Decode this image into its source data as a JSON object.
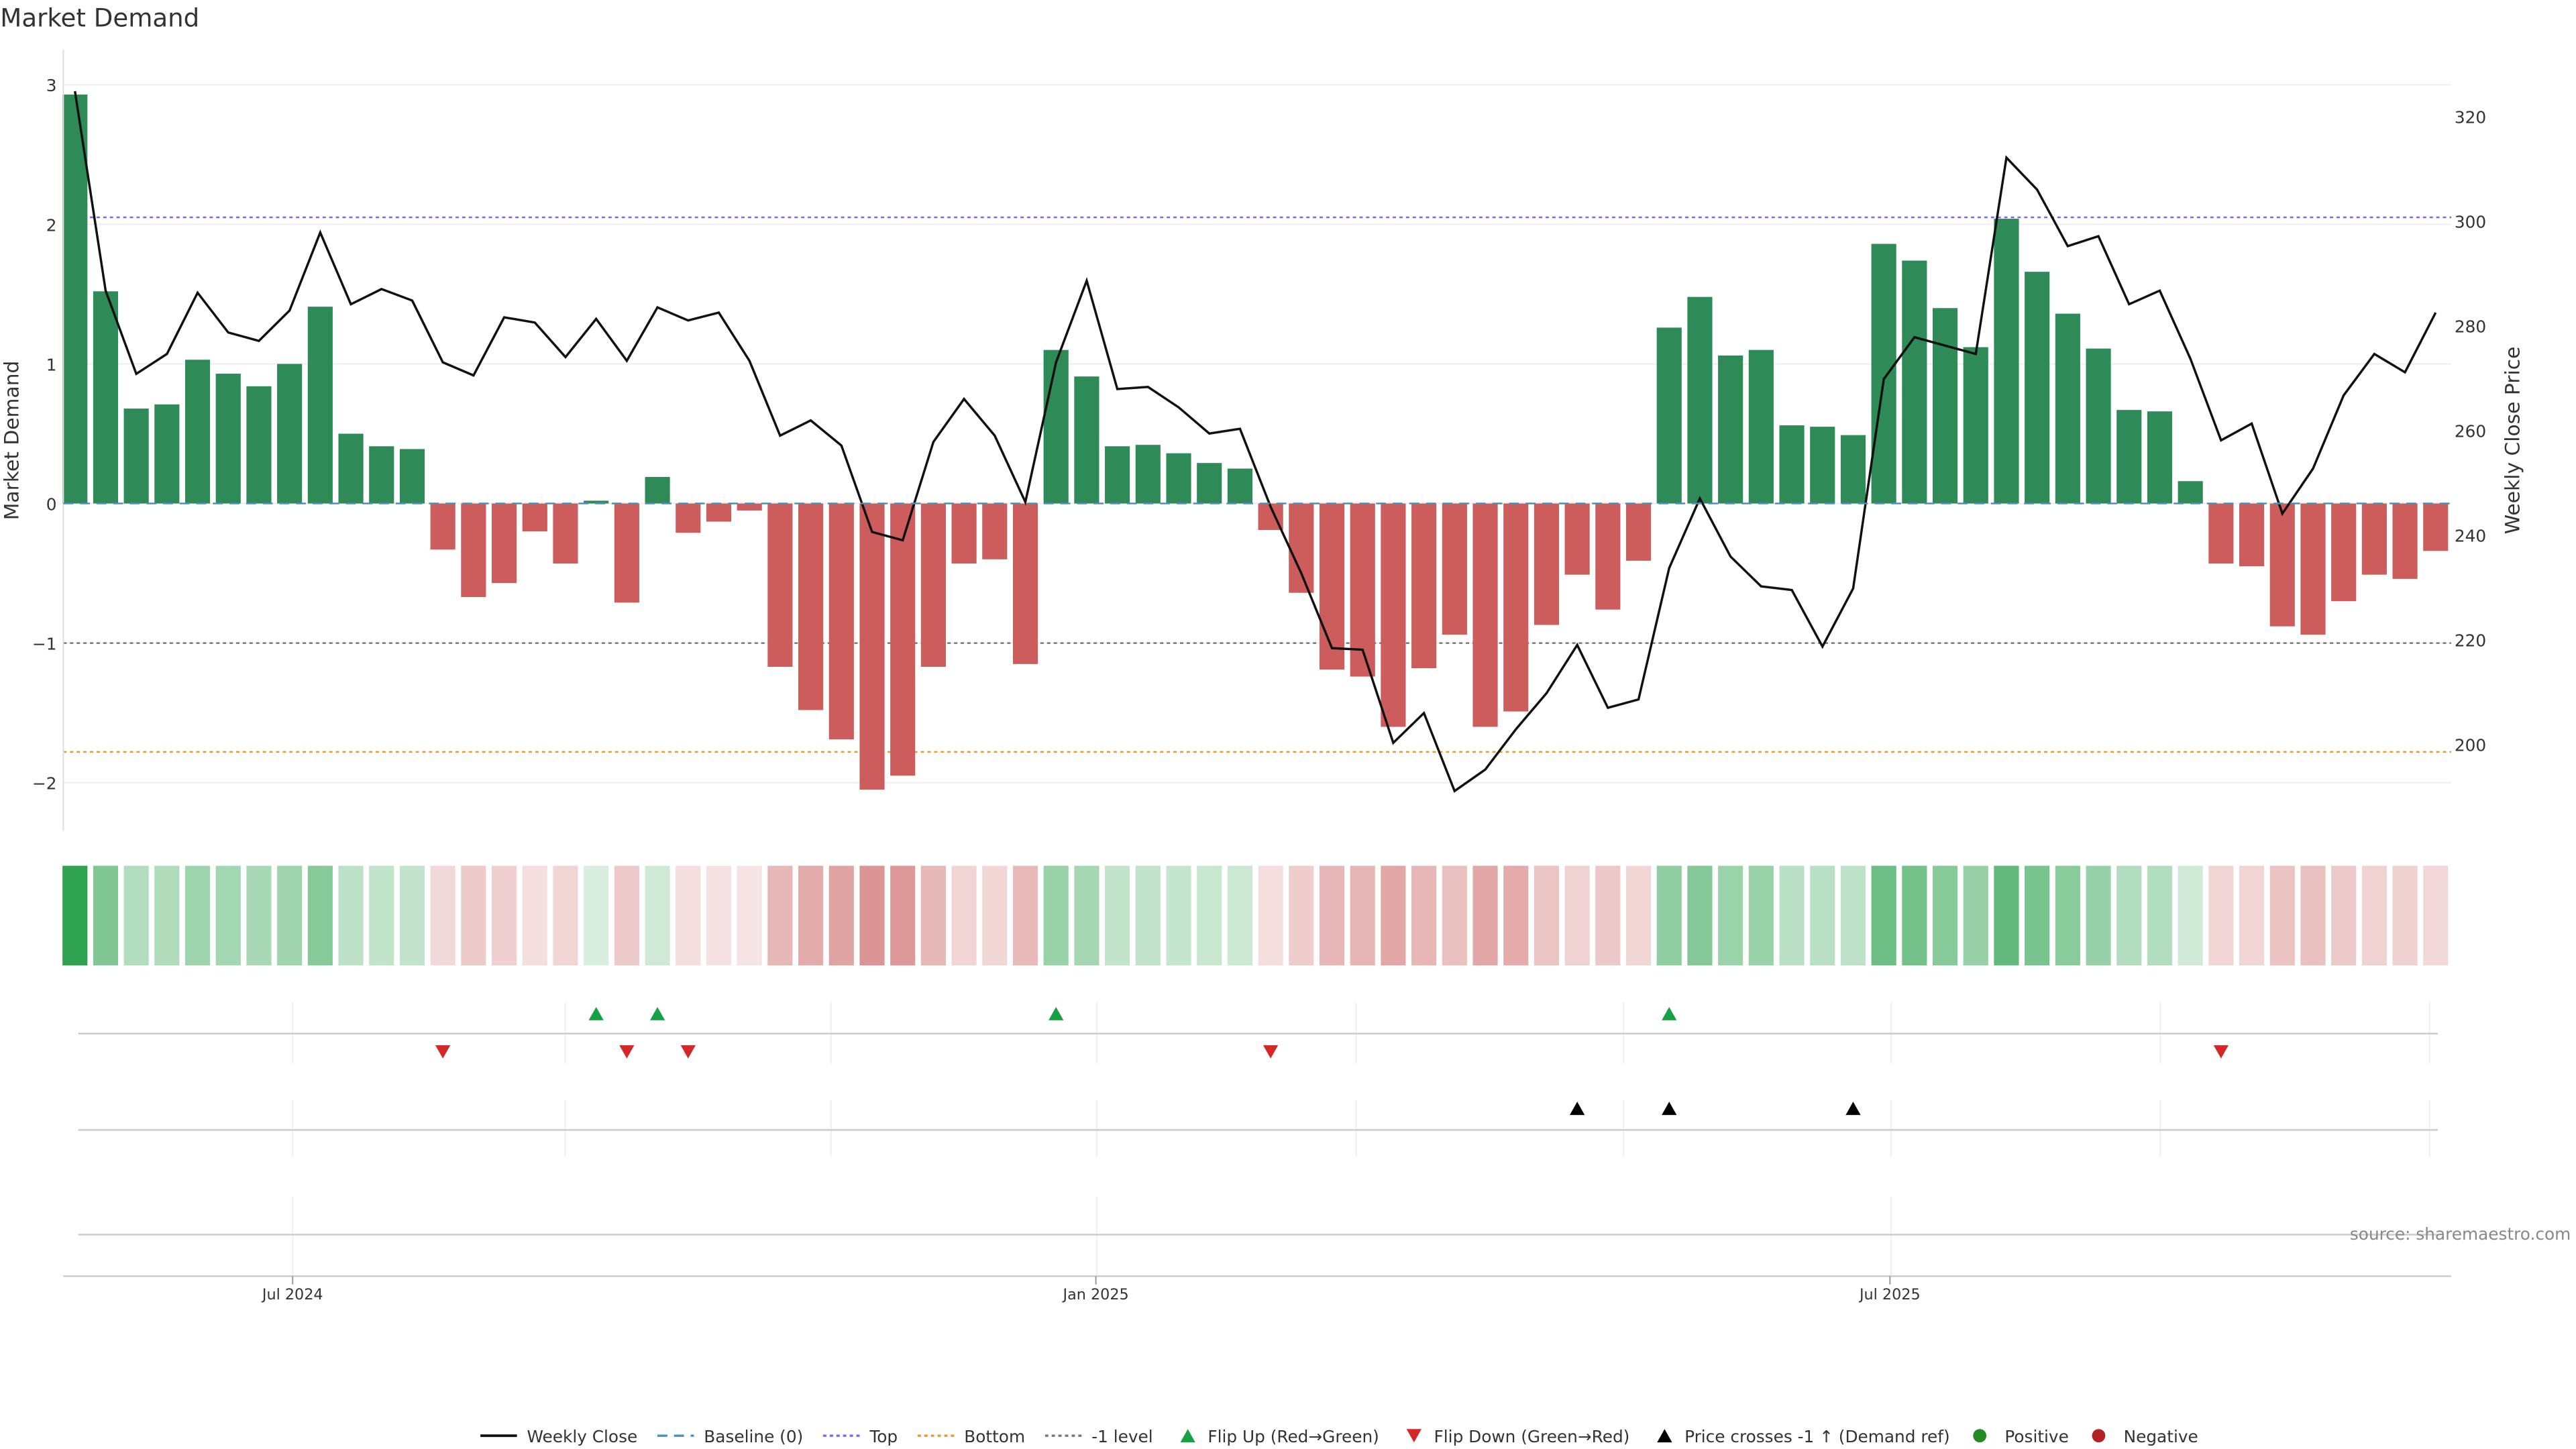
{
  "chart_data": {
    "type": "bar",
    "title": "Market Demand",
    "ylabel": "Market Demand",
    "y2label": "Weekly Close Price",
    "ylim": [
      -2.35,
      3.05
    ],
    "y2lim": [
      185,
      327
    ],
    "yticks": [
      3,
      2,
      1,
      0,
      -1,
      -2
    ],
    "ytick_labels": [
      "3",
      "2",
      "1",
      "0",
      "−1",
      "−2"
    ],
    "y2ticks": [
      320,
      300,
      280,
      260,
      240,
      220,
      200
    ],
    "y2tick_labels": [
      "320",
      "300",
      "280",
      "260",
      "240",
      "220",
      "200"
    ],
    "xticks": [
      {
        "label": "Jul 2024",
        "week_index": 7.1
      },
      {
        "label": "Jan 2025",
        "week_index": 33.3
      },
      {
        "label": "Jul 2025",
        "week_index": 59.2
      }
    ],
    "levels": {
      "top": 2.05,
      "bottom": -1.78,
      "minus_one": -1,
      "baseline": 0
    },
    "demand": [
      2.93,
      1.52,
      0.68,
      0.71,
      1.03,
      0.93,
      0.84,
      1.0,
      1.41,
      0.5,
      0.41,
      0.39,
      -0.33,
      -0.67,
      -0.57,
      -0.2,
      -0.43,
      0.02,
      -0.71,
      0.19,
      -0.21,
      -0.13,
      -0.05,
      -1.17,
      -1.48,
      -1.69,
      -2.05,
      -1.95,
      -1.17,
      -0.43,
      -0.4,
      -1.15,
      1.1,
      0.91,
      0.41,
      0.42,
      0.36,
      0.29,
      0.25,
      -0.19,
      -0.64,
      -1.19,
      -1.24,
      -1.6,
      -1.18,
      -0.94,
      -1.6,
      -1.49,
      -0.87,
      -0.51,
      -0.76,
      -0.41,
      1.26,
      1.48,
      1.06,
      1.1,
      0.56,
      0.55,
      0.49,
      1.86,
      1.74,
      1.4,
      1.12,
      2.04,
      1.66,
      1.36,
      1.11,
      0.67,
      0.66,
      0.16,
      -0.43,
      -0.45,
      -0.88,
      -0.94,
      -0.7,
      -0.51,
      -0.54,
      -0.34
    ],
    "weekly_close": [
      324.8,
      286.7,
      270.8,
      274.6,
      286.3,
      278.7,
      277.1,
      282.9,
      297.8,
      284.1,
      287.0,
      284.8,
      273.0,
      270.5,
      281.6,
      280.6,
      274.0,
      281.3,
      273.3,
      283.5,
      281.0,
      282.5,
      273.3,
      259.0,
      261.9,
      257.1,
      240.6,
      239.0,
      257.8,
      266.0,
      259.0,
      246.3,
      273.0,
      288.6,
      267.9,
      268.3,
      264.4,
      259.4,
      260.3,
      245.4,
      232.7,
      218.4,
      218.1,
      200.3,
      206.0,
      191.1,
      195.2,
      202.9,
      209.8,
      219.0,
      207.0,
      208.6,
      233.7,
      247.0,
      235.9,
      230.2,
      229.5,
      218.7,
      229.8,
      269.8,
      277.8,
      276.2,
      274.6,
      312.1,
      306.0,
      295.2,
      297.1,
      284.1,
      286.7,
      273.7,
      258.1,
      261.3,
      244.1,
      252.7,
      266.7,
      274.6,
      271.1,
      282.5
    ],
    "flip_up_weeks": [
      17,
      19,
      32,
      52
    ],
    "flip_down_weeks": [
      12,
      18,
      20,
      39,
      70
    ],
    "price_cross_weeks": [
      49,
      52,
      58
    ],
    "legend": [
      {
        "label": "Weekly Close",
        "kind": "line",
        "color": "#111111"
      },
      {
        "label": "Baseline (0)",
        "kind": "dash",
        "color": "#4a90b8"
      },
      {
        "label": "Top",
        "kind": "dot",
        "color": "#7b68ee"
      },
      {
        "label": "Bottom",
        "kind": "dot",
        "color": "#e69b2e"
      },
      {
        "label": "-1 level",
        "kind": "dot",
        "color": "#777777"
      },
      {
        "label": "Flip Up (Red→Green)",
        "kind": "tri-up",
        "color": "#17a045"
      },
      {
        "label": "Flip Down (Green→Red)",
        "kind": "tri-down",
        "color": "#d62728"
      },
      {
        "label": "Price crosses -1 ↑ (Demand ref)",
        "kind": "tri-up",
        "color": "#000000"
      },
      {
        "label": "Positive",
        "kind": "dot-marker",
        "color": "#228b22"
      },
      {
        "label": "Negative",
        "kind": "dot-marker",
        "color": "#b22222"
      }
    ],
    "legend_position": "bottom",
    "colors": {
      "positive": "#2e8b57",
      "negative": "#cd5c5c",
      "heat_pos": "#2ea24f",
      "heat_neg": "#c85a5a"
    },
    "source": "source: sharemaestro.com"
  }
}
